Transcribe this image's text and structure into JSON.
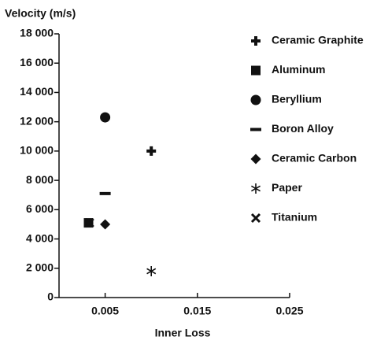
{
  "chart_data": {
    "type": "scatter",
    "ylabel": "Velocity (m/s)",
    "xlabel": "Inner Loss",
    "xlim": [
      0,
      0.025
    ],
    "xticks": [
      0.005,
      0.015,
      0.025
    ],
    "ylim": [
      0,
      18000
    ],
    "yticks": [
      0,
      {
        "value": 2000,
        "label": "2 000"
      },
      {
        "value": 4000,
        "label": "4 000"
      },
      {
        "value": 6000,
        "label": "6 000"
      },
      {
        "value": 8000,
        "label": "8 000"
      },
      {
        "value": 10000,
        "label": "10 000"
      },
      {
        "value": 12000,
        "label": "12 000"
      },
      {
        "value": 14000,
        "label": "14 000"
      },
      {
        "value": 16000,
        "label": "16 000"
      },
      {
        "value": 18000,
        "label": "18 000"
      }
    ],
    "legend": "right",
    "series": [
      {
        "name": "Ceramic Graphite",
        "marker": "plus",
        "color": "#111111",
        "x": [
          0.01
        ],
        "values": [
          10000
        ]
      },
      {
        "name": "Aluminum",
        "marker": "square",
        "color": "#111111",
        "x": [
          0.0032
        ],
        "values": [
          5100
        ]
      },
      {
        "name": "Beryllium",
        "marker": "circle",
        "color": "#111111",
        "x": [
          0.005
        ],
        "values": [
          12300
        ]
      },
      {
        "name": "Boron Alloy",
        "marker": "dash",
        "color": "#111111",
        "x": [
          0.005
        ],
        "values": [
          7100
        ]
      },
      {
        "name": "Ceramic Carbon",
        "marker": "diamond",
        "color": "#111111",
        "x": [
          0.005
        ],
        "values": [
          5000
        ]
      },
      {
        "name": "Paper",
        "marker": "asterisk",
        "color": "#111111",
        "x": [
          0.01
        ],
        "values": [
          1800
        ]
      },
      {
        "name": "Titanium",
        "marker": "cross",
        "color": "#111111",
        "x": [
          0.0033
        ],
        "values": [
          5100
        ]
      }
    ]
  }
}
